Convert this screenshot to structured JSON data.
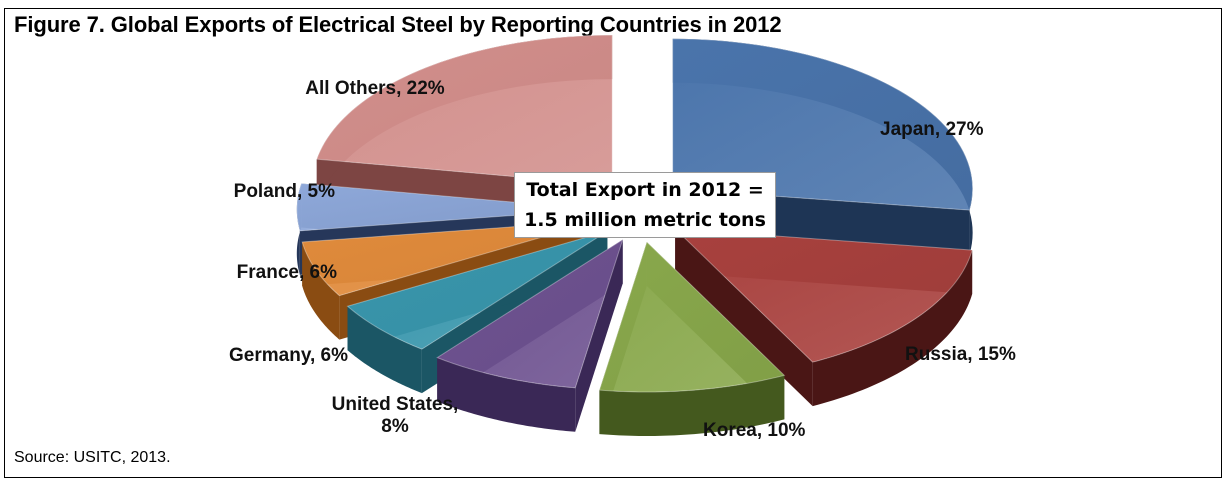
{
  "figure": {
    "title": "Figure 7. Global Exports of Electrical Steel by Reporting Countries in 2012",
    "source": "Source: USITC, 2013."
  },
  "callout": {
    "line1": "Total Export in 2012 =",
    "line2": "1.5 million metric tons"
  },
  "chart_data": {
    "type": "pie",
    "style": "3d-exploded",
    "unit": "%",
    "slices": [
      {
        "label": "Japan",
        "value": 27,
        "display": "Japan, 27%",
        "color": "#4a74ab",
        "side": "#1e3555"
      },
      {
        "label": "Russia",
        "value": 15,
        "display": "Russia, 15%",
        "color": "#a8413e",
        "side": "#4a1615"
      },
      {
        "label": "Korea",
        "value": 10,
        "display": "Korea, 10%",
        "color": "#89a84c",
        "side": "#44591e"
      },
      {
        "label": "United States",
        "value": 8,
        "display": "United States,\n8%",
        "color": "#6e5290",
        "side": "#3a2856"
      },
      {
        "label": "Germany",
        "value": 6,
        "display": "Germany, 6%",
        "color": "#3996ac",
        "side": "#1b5665"
      },
      {
        "label": "France",
        "value": 6,
        "display": "France, 6%",
        "color": "#e08b3c",
        "side": "#8a4c12"
      },
      {
        "label": "Poland",
        "value": 5,
        "display": "Poland, 5%",
        "color": "#8ea8d9",
        "side": "#26375a"
      },
      {
        "label": "All Others",
        "value": 22,
        "display": "All Others, 22%",
        "color": "#d28f8c",
        "side": "#7d4543"
      }
    ]
  }
}
